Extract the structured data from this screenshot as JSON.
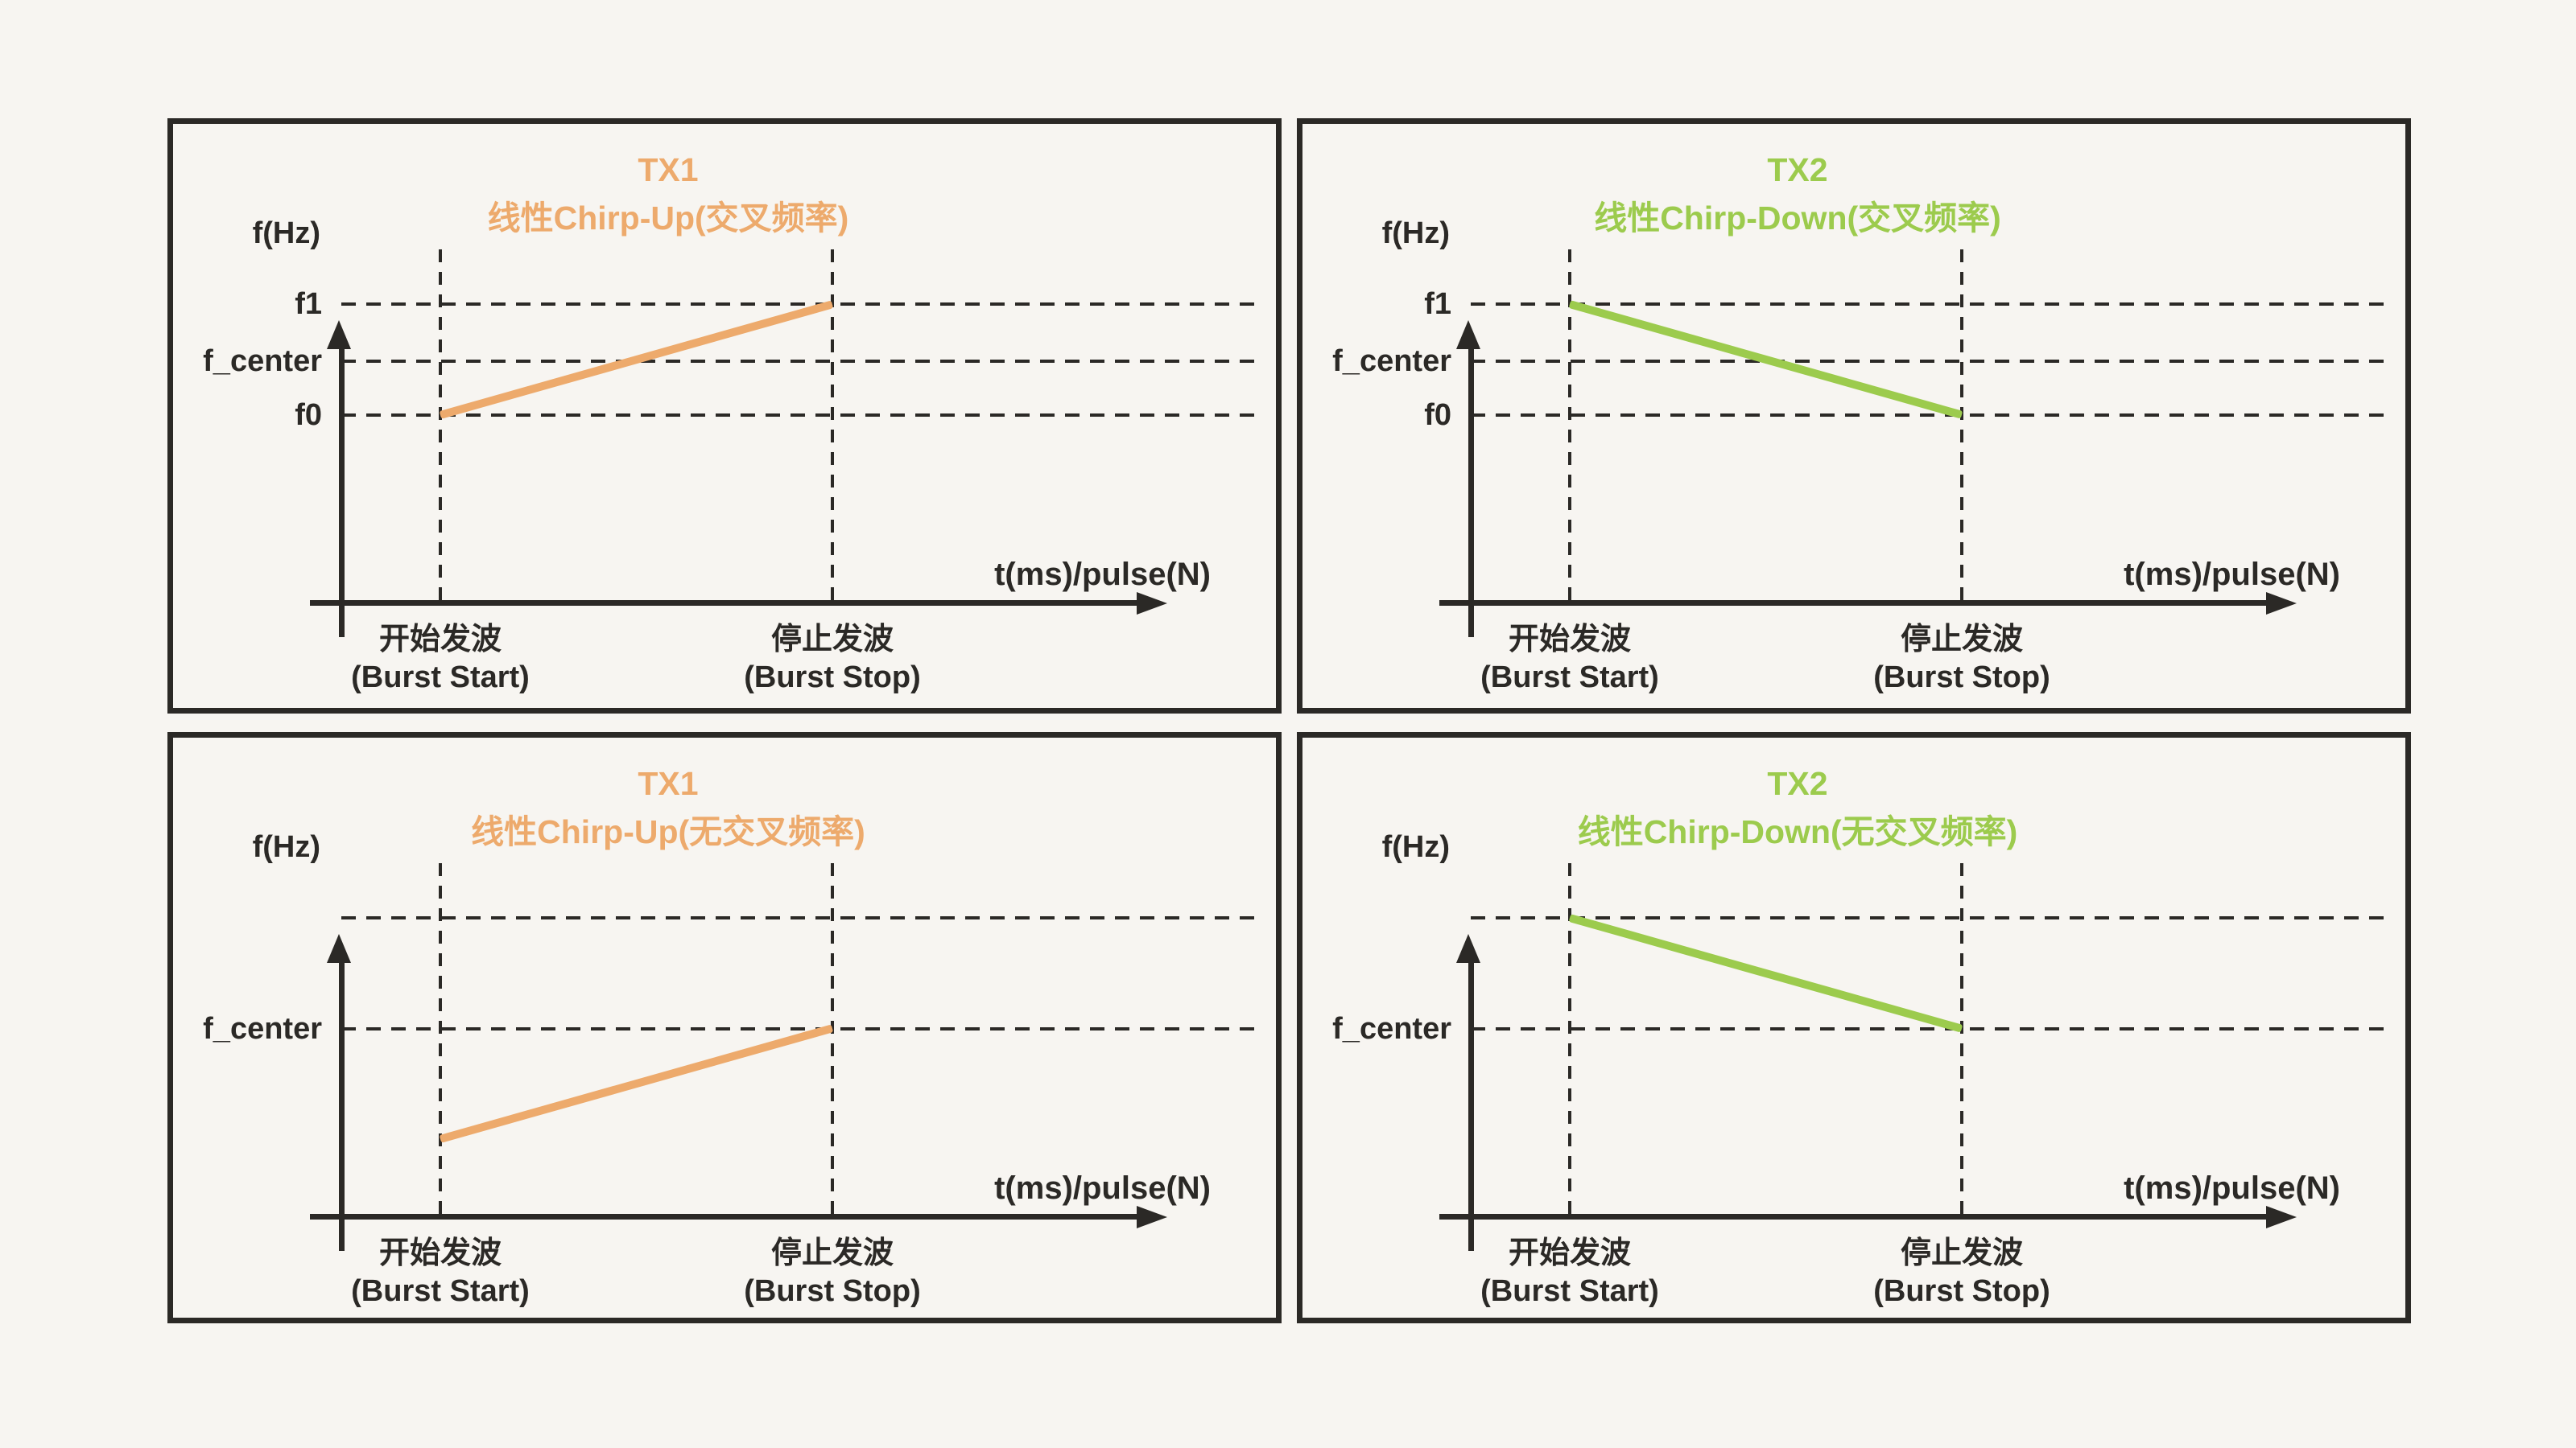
{
  "colors": {
    "background": "#F7F5F1",
    "ink": "#2B2926",
    "tx1_orange": "#EDAA6C",
    "tx2_green": "#9CCB4D"
  },
  "axis": {
    "y_label": "f(Hz)",
    "x_label": "t(ms)/pulse(N)"
  },
  "x_marks": {
    "start_line1": "开始发波",
    "start_line2": "(Burst Start)",
    "stop_line1": "停止发波",
    "stop_line2": "(Burst Stop)"
  },
  "panels": [
    {
      "title_line1": "TX1",
      "title_line2": "线性Chirp-Up(交叉频率)",
      "ticks": [
        "f1",
        "f_center",
        "f0"
      ],
      "chirp": {
        "direction": "up",
        "from_level": "f0",
        "to_level": "f1"
      }
    },
    {
      "title_line1": "TX2",
      "title_line2": "线性Chirp-Down(交叉频率)",
      "ticks": [
        "f1",
        "f_center",
        "f0"
      ],
      "chirp": {
        "direction": "down",
        "from_level": "f1",
        "to_level": "f0"
      }
    },
    {
      "title_line1": "TX1",
      "title_line2": "线性Chirp-Up(无交叉频率)",
      "ticks": [
        "f_center"
      ],
      "chirp": {
        "direction": "up",
        "from_level": "below f_center",
        "to_level": "f_center"
      }
    },
    {
      "title_line1": "TX2",
      "title_line2": "线性Chirp-Down(无交叉频率)",
      "ticks": [
        "f_center"
      ],
      "chirp": {
        "direction": "down",
        "from_level": "above f_center",
        "to_level": "f_center"
      }
    }
  ]
}
